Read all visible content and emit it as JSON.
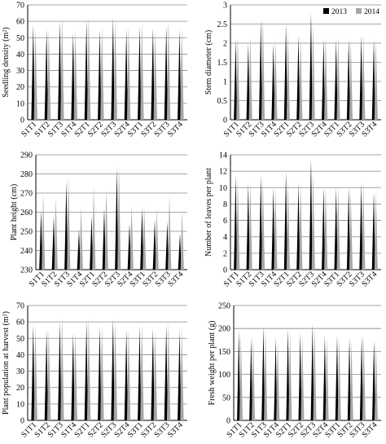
{
  "categories": [
    "S1T1",
    "S1T2",
    "S1T3",
    "S1T4",
    "S2T1",
    "S2T2",
    "S2T3",
    "S2T4",
    "S3T1",
    "S3T2",
    "S3T3",
    "S3T4"
  ],
  "legend": {
    "s2013": "2013",
    "s2014": "2014"
  },
  "colors": {
    "s2013": "#000000",
    "s2014": "#a6a6a6",
    "grid": "#888888",
    "axis": "#000000"
  },
  "chart_data": [
    {
      "type": "bar",
      "ylabel": "Seedling density (m²)",
      "ylim": [
        0,
        70
      ],
      "yticks": [
        0,
        10,
        20,
        30,
        40,
        50,
        60,
        70
      ],
      "categories": [
        "S1T1",
        "S1T2",
        "S1T3",
        "S1T4",
        "S2T1",
        "S2T2",
        "S2T3",
        "S2T4",
        "S3T1",
        "S3T2",
        "S3T3",
        "S3T4"
      ],
      "series": [
        {
          "name": "2013",
          "values": [
            58,
            55,
            60,
            53,
            60,
            55,
            62,
            55,
            57,
            56,
            57,
            55
          ]
        },
        {
          "name": "2014",
          "values": [
            56,
            55,
            63,
            55,
            63,
            57,
            62,
            57,
            60,
            55,
            61,
            56
          ]
        }
      ]
    },
    {
      "type": "bar",
      "ylabel": "Stem diameter (cm)",
      "ylim": [
        0,
        3
      ],
      "yticks": [
        0,
        0.5,
        1,
        1.5,
        2,
        2.5,
        3
      ],
      "legend_position": "top-right",
      "categories": [
        "S1T1",
        "S1T2",
        "S1T3",
        "S1T4",
        "S2T1",
        "S2T2",
        "S2T3",
        "S2T4",
        "S3T1",
        "S3T2",
        "S3T3",
        "S3T4"
      ],
      "series": [
        {
          "name": "2013",
          "values": [
            2.1,
            2.0,
            2.6,
            2.0,
            2.5,
            2.2,
            2.8,
            2.1,
            2.1,
            2.1,
            2.2,
            2.1
          ]
        },
        {
          "name": "2014",
          "values": [
            2.2,
            2.2,
            2.7,
            2.1,
            2.3,
            2.2,
            2.5,
            2.2,
            2.2,
            2.1,
            2.2,
            2.1
          ]
        }
      ]
    },
    {
      "type": "bar",
      "ylabel": "Plant height (cm)",
      "ylim": [
        230,
        290
      ],
      "yticks": [
        230,
        240,
        250,
        260,
        270,
        280,
        290
      ],
      "categories": [
        "S1T1",
        "S1T2",
        "S1T3",
        "S1T4",
        "S2T1",
        "S2T2",
        "S2T3",
        "S2T4",
        "S3T1",
        "S3T2",
        "S3T3",
        "S3T4"
      ],
      "series": [
        {
          "name": "2013",
          "values": [
            261,
            258,
            276,
            251,
            258,
            262,
            283,
            254,
            262,
            256,
            255,
            249
          ]
        },
        {
          "name": "2014",
          "values": [
            270,
            268,
            279,
            263,
            274,
            273,
            285,
            264,
            264,
            262,
            269,
            261
          ]
        }
      ]
    },
    {
      "type": "bar",
      "ylabel": "Number of leaves per plant",
      "ylim": [
        0,
        14
      ],
      "yticks": [
        0,
        2,
        4,
        6,
        8,
        10,
        12,
        14
      ],
      "categories": [
        "S1T1",
        "S1T2",
        "S1T3",
        "S1T4",
        "S2T1",
        "S2T2",
        "S2T3",
        "S2T4",
        "S3T1",
        "S3T2",
        "S3T3",
        "S3T4"
      ],
      "series": [
        {
          "name": "2013",
          "values": [
            11.5,
            10.5,
            11.5,
            10,
            12,
            10.5,
            13.5,
            10,
            10,
            10,
            10.5,
            9.5
          ]
        },
        {
          "name": "2014",
          "values": [
            11,
            10.5,
            11,
            10,
            11,
            10.5,
            12,
            10,
            10,
            9.5,
            10.5,
            9.5
          ]
        }
      ]
    },
    {
      "type": "bar",
      "ylabel": "Plant population at harvest (m²)",
      "ylim": [
        0,
        70
      ],
      "yticks": [
        0,
        10,
        20,
        30,
        40,
        50,
        60,
        70
      ],
      "categories": [
        "S1T1",
        "S1T2",
        "S1T3",
        "S1T4",
        "S2T1",
        "S2T2",
        "S2T3",
        "S2T4",
        "S3T1",
        "S3T2",
        "S3T3",
        "S3T4"
      ],
      "series": [
        {
          "name": "2013",
          "values": [
            58,
            55,
            60,
            53,
            60,
            57,
            62,
            55,
            57,
            56,
            58,
            55
          ]
        },
        {
          "name": "2014",
          "values": [
            57,
            56,
            63,
            54,
            62,
            58,
            61,
            56,
            59,
            55,
            60,
            56
          ]
        }
      ]
    },
    {
      "type": "bar",
      "ylabel": "Fresh weight per plant (g)",
      "ylim": [
        0,
        250
      ],
      "yticks": [
        0,
        50,
        100,
        150,
        200,
        250
      ],
      "categories": [
        "S1T1",
        "S1T2",
        "S1T3",
        "S1T4",
        "S2T1",
        "S2T2",
        "S2T3",
        "S2T4",
        "S3T1",
        "S3T2",
        "S3T3",
        "S3T4"
      ],
      "series": [
        {
          "name": "2013",
          "values": [
            195,
            180,
            205,
            180,
            200,
            190,
            210,
            185,
            185,
            180,
            185,
            175
          ]
        },
        {
          "name": "2014",
          "values": [
            190,
            185,
            200,
            175,
            195,
            185,
            205,
            180,
            180,
            175,
            185,
            170
          ]
        }
      ]
    }
  ]
}
